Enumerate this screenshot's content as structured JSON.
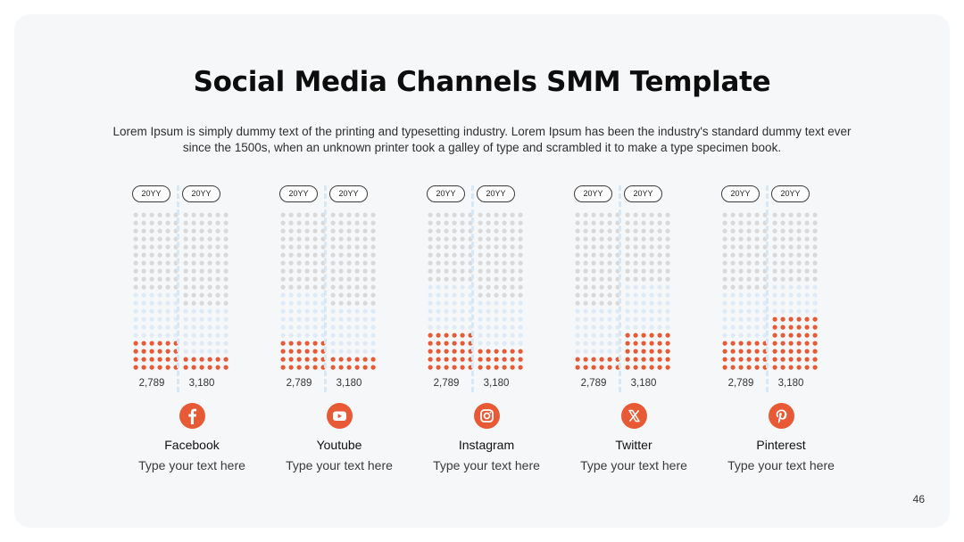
{
  "title": "Social Media Channels SMM Template",
  "subtitle": "Lorem Ipsum is simply dummy text of the printing and typesetting industry. Lorem Ipsum has been the industry's standard dummy text ever since the 1500s, when an unknown printer took a galley of type and scrambled it to make a type specimen book.",
  "page_number": "46",
  "colors": {
    "accent": "#e85a35",
    "dot_gray": "#d9d9d9",
    "dot_blue": "#deebf6",
    "background": "#f6f7f9"
  },
  "channels": [
    {
      "name": "Facebook",
      "desc": "Type your text here",
      "icon": "facebook-icon",
      "left": {
        "period": "20YY",
        "value": "2,789",
        "filled_rows": 4,
        "blue_rows": 6
      },
      "right": {
        "period": "20YY",
        "value": "3,180",
        "filled_rows": 2,
        "blue_rows": 6
      }
    },
    {
      "name": "Youtube",
      "desc": "Type your text here",
      "icon": "youtube-icon",
      "left": {
        "period": "20YY",
        "value": "2,789",
        "filled_rows": 4,
        "blue_rows": 6
      },
      "right": {
        "period": "20YY",
        "value": "3,180",
        "filled_rows": 2,
        "blue_rows": 6
      }
    },
    {
      "name": "Instagram",
      "desc": "Type your text here",
      "icon": "instagram-icon",
      "left": {
        "period": "20YY",
        "value": "2,789",
        "filled_rows": 5,
        "blue_rows": 6
      },
      "right": {
        "period": "20YY",
        "value": "3,180",
        "filled_rows": 3,
        "blue_rows": 6
      }
    },
    {
      "name": "Twitter",
      "desc": "Type your text here",
      "icon": "x-icon",
      "left": {
        "period": "20YY",
        "value": "2,789",
        "filled_rows": 2,
        "blue_rows": 6
      },
      "right": {
        "period": "20YY",
        "value": "3,180",
        "filled_rows": 5,
        "blue_rows": 6
      }
    },
    {
      "name": "Pinterest",
      "desc": "Type your text here",
      "icon": "pinterest-icon",
      "left": {
        "period": "20YY",
        "value": "2,789",
        "filled_rows": 4,
        "blue_rows": 6
      },
      "right": {
        "period": "20YY",
        "value": "3,180",
        "filled_rows": 7,
        "blue_rows": 4
      }
    }
  ]
}
